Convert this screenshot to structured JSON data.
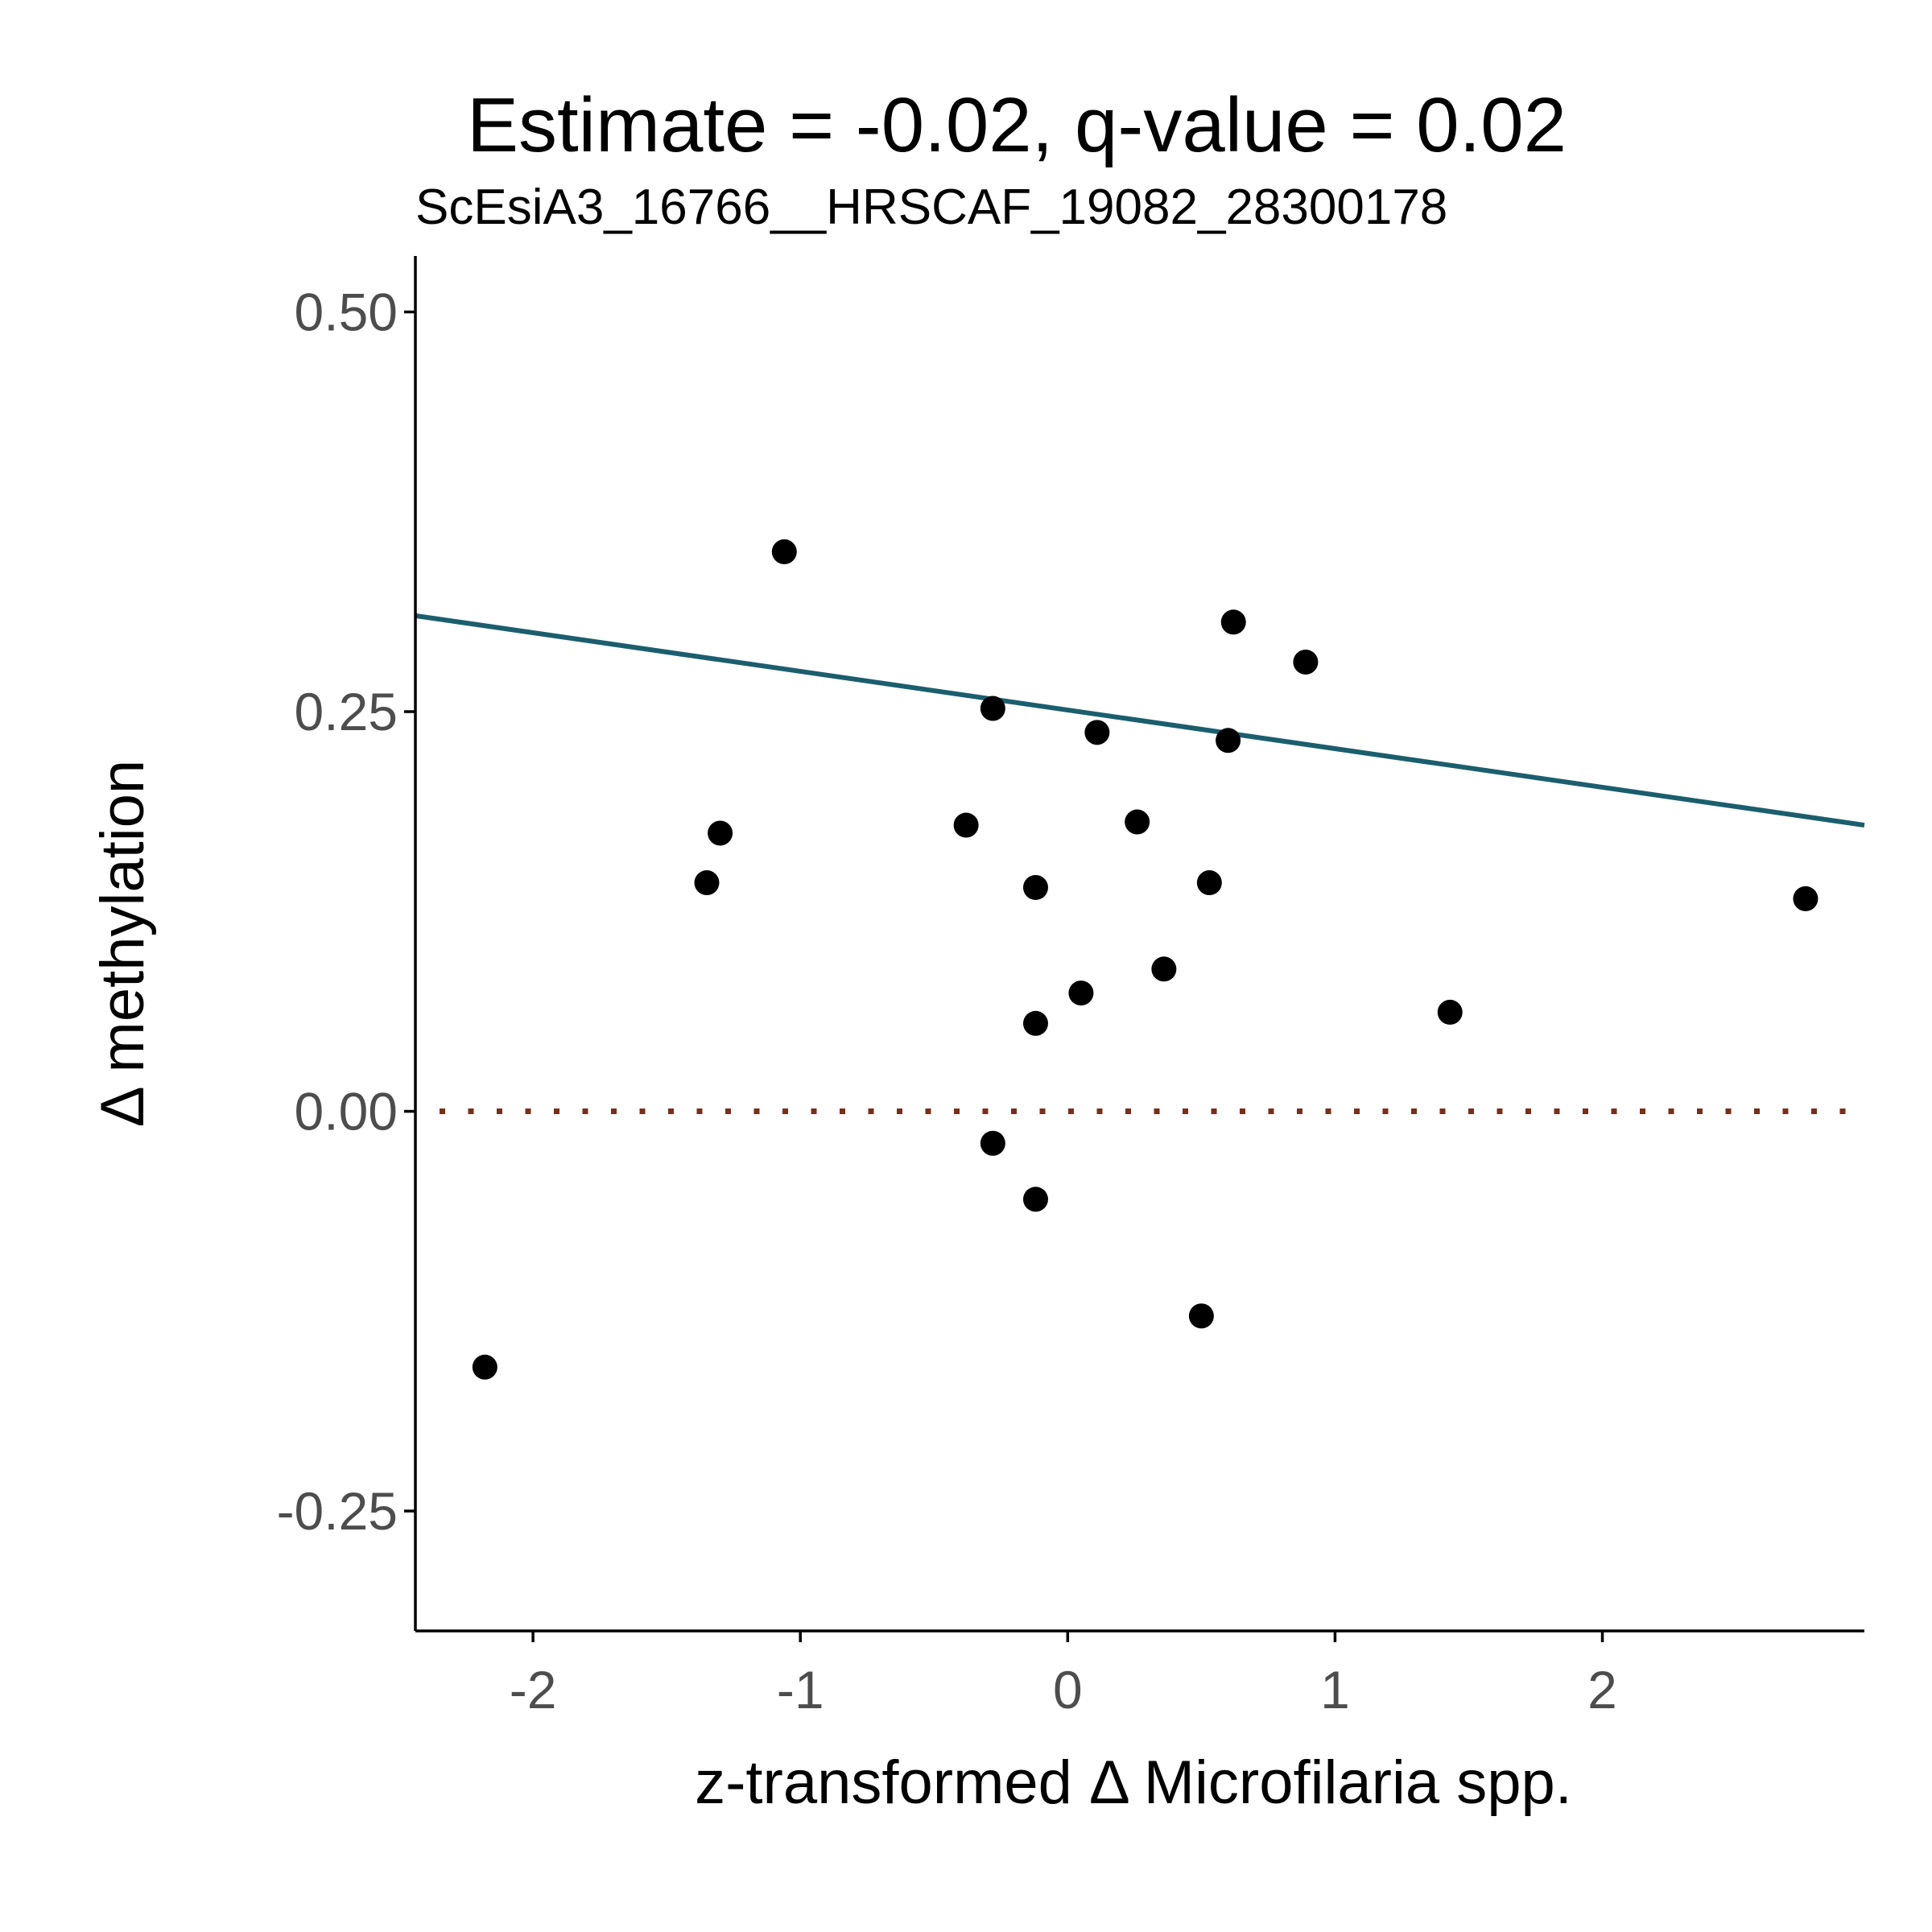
{
  "chart_data": {
    "type": "scatter",
    "title": "Estimate = -0.02, q-value = 0.02",
    "subtitle": "ScEsiA3_16766__HRSCAF_19082_28300178",
    "xlabel": "z-transformed Δ Microfilaria spp.",
    "ylabel": "Δ methylation",
    "xlim": [
      -2.44,
      2.98
    ],
    "ylim": [
      -0.325,
      0.535
    ],
    "x_ticks": [
      -2,
      -1,
      0,
      1,
      2
    ],
    "x_tick_labels": [
      "-2",
      "-1",
      "0",
      "1",
      "2"
    ],
    "y_ticks": [
      0.5,
      0.25,
      0.0,
      -0.25
    ],
    "y_tick_labels": [
      "0.50",
      "0.25",
      "0.00",
      "-0.25"
    ],
    "grid": false,
    "legend": "none",
    "points": [
      {
        "x": -2.18,
        "y": -0.16
      },
      {
        "x": -1.35,
        "y": 0.143
      },
      {
        "x": -1.3,
        "y": 0.174
      },
      {
        "x": -1.06,
        "y": 0.35
      },
      {
        "x": -0.38,
        "y": 0.179
      },
      {
        "x": -0.28,
        "y": 0.252
      },
      {
        "x": -0.28,
        "y": -0.02
      },
      {
        "x": -0.12,
        "y": 0.14
      },
      {
        "x": -0.12,
        "y": 0.055
      },
      {
        "x": -0.12,
        "y": -0.055
      },
      {
        "x": 0.05,
        "y": 0.074
      },
      {
        "x": 0.11,
        "y": 0.237
      },
      {
        "x": 0.26,
        "y": 0.181
      },
      {
        "x": 0.36,
        "y": 0.089
      },
      {
        "x": 0.5,
        "y": -0.128
      },
      {
        "x": 0.53,
        "y": 0.143
      },
      {
        "x": 0.6,
        "y": 0.232
      },
      {
        "x": 0.62,
        "y": 0.306
      },
      {
        "x": 0.89,
        "y": 0.281
      },
      {
        "x": 1.43,
        "y": 0.062
      },
      {
        "x": 2.76,
        "y": 0.133
      }
    ],
    "fit_line": {
      "x": [
        -2.44,
        2.98
      ],
      "y": [
        0.31,
        0.179
      ]
    },
    "reference_line": {
      "y": 0.0,
      "style": "dotted"
    },
    "colors": {
      "points": "#000000",
      "fit_line": "#1b5e6e",
      "reference_line": "#7a2e1a",
      "axis": "#000000",
      "tick_label": "#4d4d4d"
    }
  }
}
